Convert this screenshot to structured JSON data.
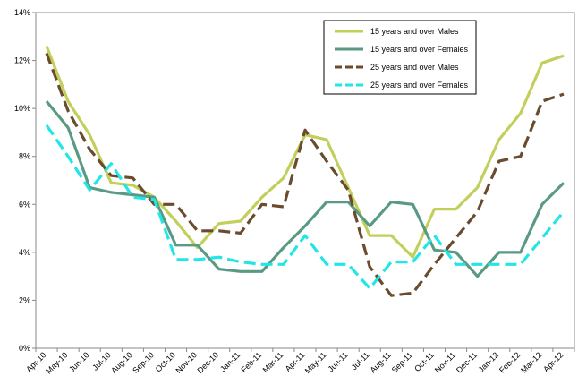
{
  "chart_data": {
    "type": "line",
    "categories": [
      "Apr-10",
      "May-10",
      "Jun-10",
      "Jul-10",
      "Aug-10",
      "Sep-10",
      "Oct-10",
      "Nov-10",
      "Dec-10",
      "Jan-11",
      "Feb-11",
      "Mar-11",
      "Apr-11",
      "May-11",
      "Jun-11",
      "Jul-11",
      "Aug-11",
      "Sep-11",
      "Oct-11",
      "Nov-11",
      "Dec-11",
      "Jan-12",
      "Feb-12",
      "Mar-12",
      "Apr-12"
    ],
    "ylim": [
      0,
      14
    ],
    "yticks": [
      0,
      2,
      4,
      6,
      8,
      10,
      12,
      14
    ],
    "ytick_labels": [
      "0%",
      "2%",
      "4%",
      "6%",
      "8%",
      "10%",
      "12%",
      "14%"
    ],
    "grid": false,
    "legend_position": "top-right",
    "series": [
      {
        "name": "15 years and over   Males",
        "color": "#c2cf5a",
        "dash": "solid",
        "values": [
          12.6,
          10.3,
          8.9,
          6.9,
          6.8,
          6.3,
          5.3,
          4.2,
          5.2,
          5.3,
          6.3,
          7.1,
          8.9,
          8.7,
          6.7,
          4.7,
          4.7,
          3.8,
          5.8,
          5.8,
          6.7,
          8.7,
          9.8,
          11.9,
          12.2
        ]
      },
      {
        "name": "15 years and over   Females",
        "color": "#5a9a84",
        "dash": "solid",
        "values": [
          10.3,
          9.2,
          6.7,
          6.5,
          6.4,
          6.3,
          4.3,
          4.3,
          3.3,
          3.2,
          3.2,
          4.2,
          5.1,
          6.1,
          6.1,
          5.1,
          6.1,
          6.0,
          4.1,
          4.0,
          3.0,
          4.0,
          4.0,
          6.0,
          6.9
        ]
      },
      {
        "name": "25 years and over   Males",
        "color": "#6b4b2e",
        "dash": "dashed",
        "values": [
          12.3,
          9.9,
          8.3,
          7.2,
          7.1,
          6.0,
          6.0,
          4.9,
          4.9,
          4.8,
          6.0,
          5.9,
          9.1,
          7.8,
          6.6,
          3.4,
          2.2,
          2.3,
          3.5,
          4.6,
          5.7,
          7.8,
          8.0,
          10.3,
          10.6
        ]
      },
      {
        "name": "25 years and over   Females",
        "color": "#22e6e6",
        "dash": "dashed",
        "values": [
          9.3,
          8.0,
          6.6,
          7.7,
          6.3,
          6.2,
          3.7,
          3.7,
          3.8,
          3.6,
          3.5,
          3.5,
          4.7,
          3.5,
          3.5,
          2.5,
          3.6,
          3.6,
          4.7,
          3.5,
          3.5,
          3.5,
          3.5,
          4.6,
          5.7
        ]
      }
    ]
  }
}
